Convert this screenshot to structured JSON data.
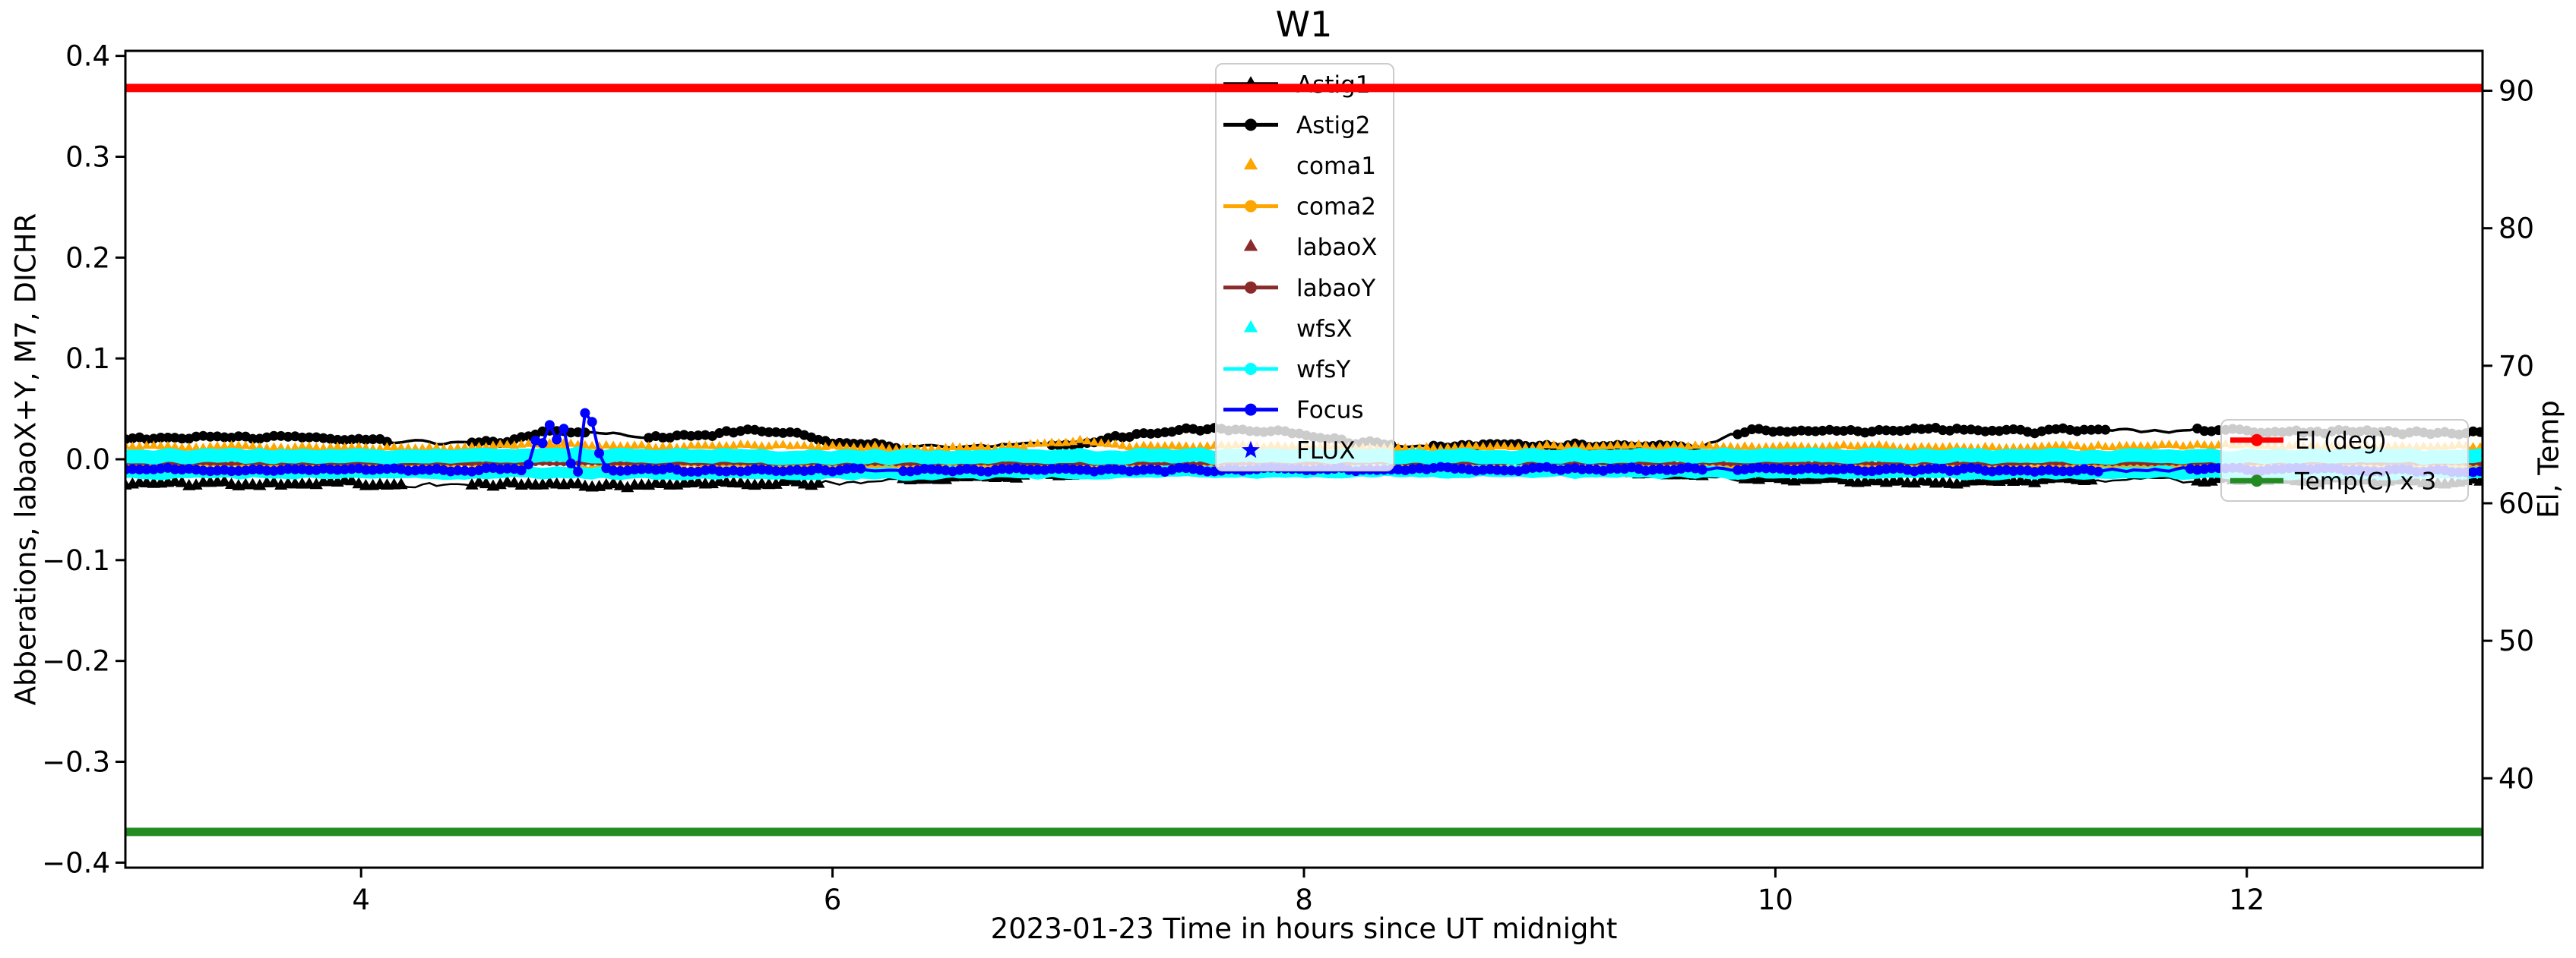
{
  "chart_data": {
    "type": "line",
    "title": "W1",
    "xlabel": "2023-01-23  Time in hours since UT midnight",
    "ylabel_left": "Abberations, labaoX+Y, M7, DICHR",
    "ylabel_right": "El, Temp",
    "xlim": [
      3,
      13
    ],
    "ylim_left": [
      -0.405,
      0.405
    ],
    "ylim_right": [
      33.5,
      92.9
    ],
    "xticks": [
      4,
      6,
      8,
      10,
      12
    ],
    "yticks_left": [
      0.4,
      0.3,
      0.2,
      0.1,
      0.0,
      -0.1,
      -0.2,
      -0.3,
      -0.4
    ],
    "yticks_right": [
      90,
      80,
      70,
      60,
      50,
      40
    ],
    "grid": false,
    "sample_step": 0.03,
    "series": [
      {
        "label": "Astig1",
        "color": "#000000",
        "axis": "left",
        "zlayer": "data",
        "line_width": 2.5,
        "marker": "triangle",
        "marker_size": 15,
        "noise": 0.002,
        "points": [
          [
            3.0,
            -0.025
          ],
          [
            3.5,
            -0.024
          ],
          [
            4.0,
            -0.024
          ],
          [
            4.17,
            -0.025
          ],
          [
            4.45,
            -0.025
          ],
          [
            4.8,
            -0.026
          ],
          [
            5.2,
            -0.026
          ],
          [
            5.6,
            -0.025
          ],
          [
            5.95,
            -0.024
          ],
          [
            6.28,
            -0.021
          ],
          [
            6.6,
            -0.018
          ],
          [
            6.9,
            -0.016
          ],
          [
            7.1,
            -0.014
          ],
          [
            7.4,
            -0.012
          ],
          [
            7.7,
            -0.011
          ],
          [
            8.0,
            -0.011
          ],
          [
            8.3,
            -0.011
          ],
          [
            8.7,
            -0.012
          ],
          [
            9.0,
            -0.011
          ],
          [
            9.3,
            -0.012
          ],
          [
            9.6,
            -0.015
          ],
          [
            9.85,
            -0.019
          ],
          [
            10.1,
            -0.021
          ],
          [
            10.4,
            -0.022
          ],
          [
            10.7,
            -0.023
          ],
          [
            11.0,
            -0.022
          ],
          [
            11.35,
            -0.021
          ],
          [
            11.78,
            -0.021
          ],
          [
            12.1,
            -0.021
          ],
          [
            12.5,
            -0.021
          ],
          [
            12.8,
            -0.022
          ],
          [
            13.0,
            -0.022
          ]
        ],
        "marker_gaps": [
          [
            4.17,
            4.45
          ],
          [
            5.95,
            6.28
          ],
          [
            9.7,
            9.84
          ],
          [
            11.35,
            11.78
          ]
        ]
      },
      {
        "label": "Astig2",
        "color": "#000000",
        "axis": "left",
        "zlayer": "data",
        "line_width": 3.5,
        "marker": "circle",
        "marker_size": 13,
        "noise": 0.0015,
        "points": [
          [
            3.0,
            0.021
          ],
          [
            3.3,
            0.022
          ],
          [
            3.7,
            0.022
          ],
          [
            4.0,
            0.021
          ],
          [
            4.13,
            0.018
          ],
          [
            4.45,
            0.016
          ],
          [
            4.6,
            0.017
          ],
          [
            4.75,
            0.026
          ],
          [
            4.85,
            0.028
          ],
          [
            4.98,
            0.026
          ],
          [
            5.22,
            0.02
          ],
          [
            5.45,
            0.024
          ],
          [
            5.6,
            0.028
          ],
          [
            5.85,
            0.027
          ],
          [
            5.95,
            0.018
          ],
          [
            6.1,
            0.015
          ],
          [
            6.3,
            0.013
          ],
          [
            6.6,
            0.013
          ],
          [
            6.9,
            0.014
          ],
          [
            7.1,
            0.018
          ],
          [
            7.35,
            0.026
          ],
          [
            7.6,
            0.03
          ],
          [
            7.85,
            0.029
          ],
          [
            8.05,
            0.023
          ],
          [
            8.2,
            0.017
          ],
          [
            8.38,
            0.014
          ],
          [
            8.6,
            0.013
          ],
          [
            8.9,
            0.015
          ],
          [
            9.2,
            0.013
          ],
          [
            9.5,
            0.013
          ],
          [
            9.68,
            0.012
          ],
          [
            9.83,
            0.026
          ],
          [
            9.95,
            0.028
          ],
          [
            10.2,
            0.029
          ],
          [
            10.5,
            0.028
          ],
          [
            10.8,
            0.029
          ],
          [
            11.1,
            0.028
          ],
          [
            11.3,
            0.029
          ],
          [
            11.5,
            0.0285
          ],
          [
            11.7,
            0.0285
          ],
          [
            11.9,
            0.028
          ],
          [
            12.2,
            0.028
          ],
          [
            12.6,
            0.027
          ],
          [
            13.0,
            0.026
          ]
        ],
        "marker_gaps": [
          [
            4.13,
            4.45
          ],
          [
            4.98,
            5.22
          ],
          [
            6.3,
            6.92
          ],
          [
            8.38,
            8.55
          ],
          [
            9.66,
            9.82
          ],
          [
            11.42,
            11.78
          ]
        ]
      },
      {
        "label": "coma1",
        "color": "#FFA500",
        "axis": "left",
        "zlayer": "data",
        "line_width": 0,
        "marker": "triangle",
        "marker_size": 11,
        "noise": 0.001,
        "points": [
          [
            3.0,
            0.012
          ],
          [
            3.5,
            0.012
          ],
          [
            4.0,
            0.011
          ],
          [
            4.5,
            0.012
          ],
          [
            4.78,
            0.016
          ],
          [
            5.0,
            0.012
          ],
          [
            5.4,
            0.012
          ],
          [
            5.65,
            0.014
          ],
          [
            5.9,
            0.012
          ],
          [
            6.3,
            0.011
          ],
          [
            6.7,
            0.011
          ],
          [
            7.05,
            0.019
          ],
          [
            7.25,
            0.012
          ],
          [
            7.7,
            0.013
          ],
          [
            8.1,
            0.012
          ],
          [
            8.5,
            0.011
          ],
          [
            8.9,
            0.012
          ],
          [
            9.4,
            0.013
          ],
          [
            9.8,
            0.012
          ],
          [
            10.2,
            0.013
          ],
          [
            10.6,
            0.012
          ],
          [
            11.0,
            0.012
          ],
          [
            11.4,
            0.012
          ],
          [
            11.9,
            0.014
          ],
          [
            12.3,
            0.013
          ],
          [
            12.7,
            0.012
          ],
          [
            13.0,
            0.013
          ]
        ],
        "marker_gaps": []
      },
      {
        "label": "coma2",
        "color": "#FFA500",
        "axis": "left",
        "zlayer": "data",
        "line_width": 3.5,
        "marker": "circle",
        "marker_size": 9,
        "noise": 0.0008,
        "points": [
          [
            3.0,
            -0.006
          ],
          [
            3.6,
            -0.006
          ],
          [
            4.2,
            -0.006
          ],
          [
            4.7,
            -0.006
          ],
          [
            4.78,
            0.014
          ],
          [
            4.86,
            0.009
          ],
          [
            4.95,
            -0.009
          ],
          [
            5.1,
            -0.006
          ],
          [
            5.6,
            -0.006
          ],
          [
            6.2,
            -0.007
          ],
          [
            6.8,
            -0.006
          ],
          [
            7.4,
            -0.008
          ],
          [
            8.0,
            -0.008
          ],
          [
            8.6,
            -0.007
          ],
          [
            9.2,
            -0.008
          ],
          [
            9.8,
            -0.007
          ],
          [
            10.4,
            -0.006
          ],
          [
            11.0,
            -0.007
          ],
          [
            11.6,
            -0.007
          ],
          [
            12.2,
            -0.007
          ],
          [
            12.6,
            -0.007
          ],
          [
            13.0,
            -0.007
          ]
        ],
        "marker_gaps": []
      },
      {
        "label": "labaoX",
        "color": "#8B2A2A",
        "axis": "left",
        "zlayer": "data",
        "line_width": 0,
        "marker": "triangle",
        "marker_size": 8,
        "noise": 0.0006,
        "points": [
          [
            3.0,
            -0.003
          ],
          [
            5.0,
            -0.003
          ],
          [
            7.0,
            -0.0032
          ],
          [
            9.0,
            -0.003
          ],
          [
            11.0,
            -0.0031
          ],
          [
            13.0,
            -0.003
          ]
        ],
        "marker_gaps": []
      },
      {
        "label": "labaoY",
        "color": "#8B2A2A",
        "axis": "left",
        "zlayer": "data",
        "line_width": 4,
        "marker": "circle",
        "marker_size": 7,
        "noise": 0.0004,
        "points": [
          [
            3.0,
            -0.004
          ],
          [
            5.0,
            -0.004
          ],
          [
            7.0,
            -0.0042
          ],
          [
            9.0,
            -0.004
          ],
          [
            11.0,
            -0.0041
          ],
          [
            13.0,
            -0.004
          ]
        ],
        "marker_gaps": []
      },
      {
        "label": "wfsX",
        "color": "#00FFFF",
        "axis": "left",
        "zlayer": "data",
        "line_width": 18,
        "marker": "triangle",
        "marker_size": 14,
        "noise": 0.0012,
        "points": [
          [
            3.0,
            0.003
          ],
          [
            4.0,
            0.003
          ],
          [
            4.8,
            0.004
          ],
          [
            5.5,
            0.003
          ],
          [
            6.2,
            0.002
          ],
          [
            7.0,
            0.003
          ],
          [
            8.0,
            0.003
          ],
          [
            9.0,
            0.003
          ],
          [
            10.0,
            0.0035
          ],
          [
            11.0,
            0.003
          ],
          [
            12.0,
            0.003
          ],
          [
            13.0,
            0.003
          ]
        ],
        "marker_gaps": []
      },
      {
        "label": "wfsY",
        "color": "#00FFFF",
        "axis": "left",
        "zlayer": "data",
        "line_width": 15,
        "marker": "circle",
        "marker_size": 11,
        "noise": 0.0011,
        "points": [
          [
            3.0,
            -0.0135
          ],
          [
            4.0,
            -0.0135
          ],
          [
            5.0,
            -0.0135
          ],
          [
            6.0,
            -0.0145
          ],
          [
            7.0,
            -0.013
          ],
          [
            8.0,
            -0.0125
          ],
          [
            9.0,
            -0.0125
          ],
          [
            10.0,
            -0.013
          ],
          [
            11.0,
            -0.0135
          ],
          [
            12.0,
            -0.0135
          ],
          [
            13.0,
            -0.0135
          ]
        ],
        "marker_gaps": []
      },
      {
        "label": "Focus",
        "color": "#0000FF",
        "axis": "left",
        "zlayer": "data",
        "line_width": 4,
        "marker": "circle",
        "marker_size": 13,
        "noise": 0.0013,
        "points": [
          [
            3.0,
            -0.011
          ],
          [
            3.4,
            -0.0105
          ],
          [
            3.8,
            -0.011
          ],
          [
            4.2,
            -0.0108
          ],
          [
            4.5,
            -0.011
          ],
          [
            4.68,
            -0.0095
          ],
          [
            4.72,
            -0.004
          ],
          [
            4.75,
            0.03
          ],
          [
            4.78,
            0.012
          ],
          [
            4.8,
            0.036
          ],
          [
            4.83,
            0.02
          ],
          [
            4.86,
            0.03
          ],
          [
            4.89,
            -0.004
          ],
          [
            4.92,
            -0.012
          ],
          [
            4.95,
            0.046
          ],
          [
            4.975,
            0.042
          ],
          [
            5.0,
            0.016
          ],
          [
            5.02,
            -0.006
          ],
          [
            5.05,
            -0.013
          ],
          [
            5.12,
            -0.011
          ],
          [
            5.3,
            -0.0105
          ],
          [
            5.6,
            -0.0115
          ],
          [
            6.0,
            -0.011
          ],
          [
            6.5,
            -0.0105
          ],
          [
            7.0,
            -0.011
          ],
          [
            7.4,
            -0.0105
          ],
          [
            7.8,
            -0.01
          ],
          [
            8.2,
            -0.01
          ],
          [
            8.6,
            -0.0095
          ],
          [
            9.0,
            -0.01
          ],
          [
            9.4,
            -0.01
          ],
          [
            9.8,
            -0.01
          ],
          [
            10.2,
            -0.01
          ],
          [
            10.6,
            -0.0102
          ],
          [
            11.0,
            -0.0105
          ],
          [
            11.4,
            -0.011
          ],
          [
            11.8,
            -0.0105
          ],
          [
            12.2,
            -0.01
          ],
          [
            12.6,
            -0.0105
          ],
          [
            13.0,
            -0.011
          ]
        ],
        "marker_gaps": [
          [
            6.15,
            6.3
          ],
          [
            9.7,
            9.82
          ],
          [
            11.39,
            11.74
          ]
        ]
      },
      {
        "label": "FLUX",
        "color": "#0000FF",
        "axis": "left",
        "zlayer": "data",
        "line_width": 0,
        "marker": "star",
        "marker_size": 14,
        "noise": 0,
        "points": [],
        "marker_gaps": []
      },
      {
        "label": "El (deg)",
        "color": "#FF0000",
        "axis": "right",
        "zlayer": "top",
        "line_width": 11,
        "marker": null,
        "marker_size": 0,
        "noise": 0,
        "points": [
          [
            3.0,
            90.2
          ],
          [
            13.0,
            90.2
          ]
        ],
        "marker_gaps": []
      },
      {
        "label": "Temp(C) x 3",
        "color": "#228B22",
        "axis": "right",
        "zlayer": "top",
        "line_width": 11,
        "marker": null,
        "marker_size": 0,
        "noise": 0,
        "points": [
          [
            3.0,
            36.1
          ],
          [
            13.0,
            36.1
          ]
        ],
        "marker_gaps": []
      }
    ],
    "legends": [
      {
        "id": "main",
        "position": "upper center",
        "entries": [
          {
            "label": "Astig1",
            "color": "#000000",
            "style": "line_triangle"
          },
          {
            "label": "Astig2",
            "color": "#000000",
            "style": "line_circle"
          },
          {
            "label": "coma1",
            "color": "#FFA500",
            "style": "triangle"
          },
          {
            "label": "coma2",
            "color": "#FFA500",
            "style": "line_circle"
          },
          {
            "label": "labaoX",
            "color": "#8B2A2A",
            "style": "triangle"
          },
          {
            "label": "labaoY",
            "color": "#8B2A2A",
            "style": "line_circle"
          },
          {
            "label": "wfsX",
            "color": "#00FFFF",
            "style": "triangle"
          },
          {
            "label": "wfsY",
            "color": "#00FFFF",
            "style": "line_circle"
          },
          {
            "label": "Focus",
            "color": "#0000FF",
            "style": "line_circle"
          },
          {
            "label": "FLUX",
            "color": "#0000FF",
            "style": "star"
          }
        ]
      },
      {
        "id": "el_temp",
        "position": "center right",
        "entries": [
          {
            "label": "El (deg)",
            "color": "#FF0000",
            "style": "line_circle"
          },
          {
            "label": "Temp(C) x 3",
            "color": "#228B22",
            "style": "line_circle"
          }
        ]
      }
    ],
    "colors": {
      "frame": "#000000",
      "legend_border": "#CCCCCC",
      "legend_bg_alpha": 0.8
    }
  }
}
